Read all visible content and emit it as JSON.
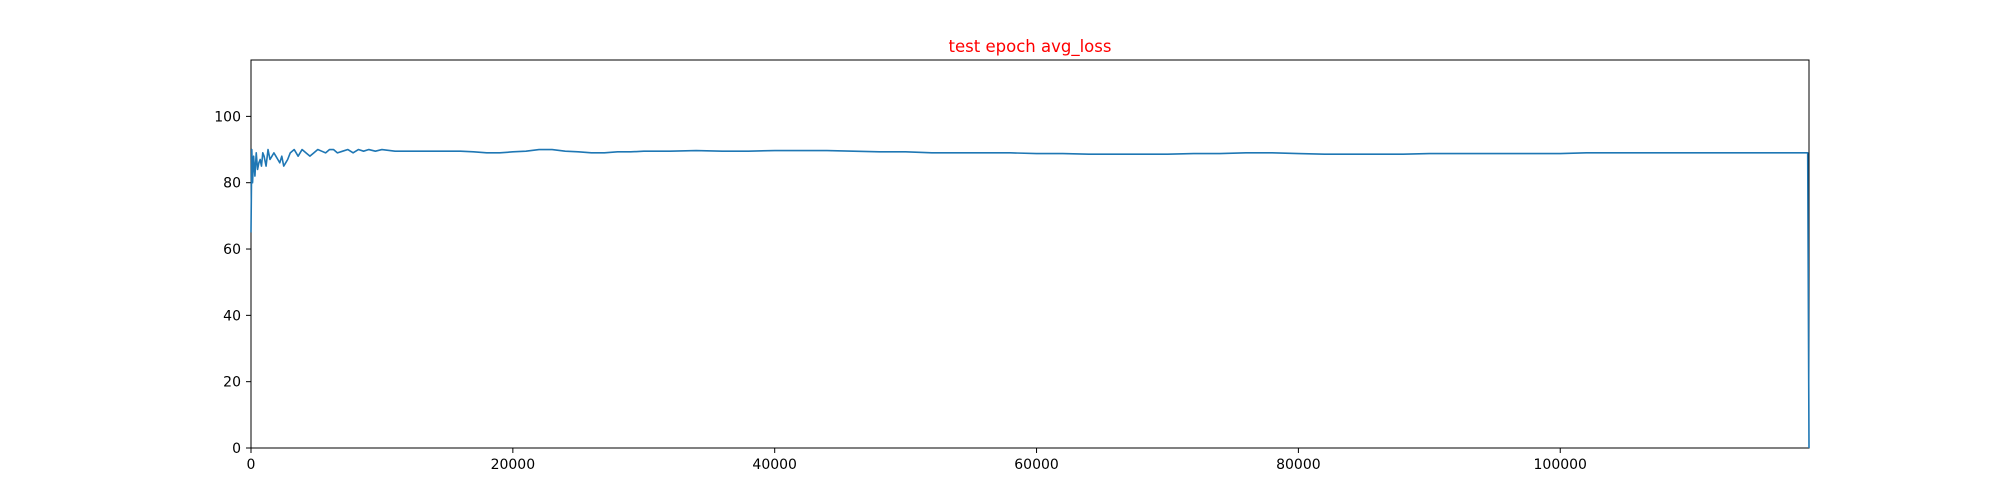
{
  "chart_data": {
    "type": "line",
    "title": "test epoch avg_loss",
    "title_color": "#ff0000",
    "xlabel": "",
    "ylabel": "",
    "xlim": [
      0,
      119000
    ],
    "ylim": [
      0,
      117
    ],
    "x_ticks": [
      0,
      20000,
      40000,
      60000,
      80000,
      100000
    ],
    "x_tick_labels": [
      "0",
      "20000",
      "40000",
      "60000",
      "80000",
      "100000"
    ],
    "y_ticks": [
      0,
      20,
      40,
      60,
      80,
      100
    ],
    "y_tick_labels": [
      "0",
      "20",
      "40",
      "60",
      "80",
      "100"
    ],
    "grid": false,
    "legend": "none",
    "series": [
      {
        "color": "#1f77b4",
        "x": [
          0,
          60,
          120,
          200,
          300,
          400,
          500,
          600,
          700,
          800,
          900,
          1000,
          1150,
          1300,
          1450,
          1600,
          1750,
          1900,
          2050,
          2200,
          2350,
          2500,
          2650,
          2800,
          3000,
          3300,
          3600,
          3900,
          4200,
          4500,
          4800,
          5100,
          5400,
          5700,
          6000,
          6300,
          6600,
          7000,
          7400,
          7800,
          8200,
          8600,
          9000,
          9500,
          10000,
          11000,
          12000,
          13000,
          14000,
          15000,
          16000,
          17000,
          18000,
          19000,
          20000,
          21000,
          22000,
          23000,
          24000,
          25000,
          26000,
          27000,
          28000,
          29000,
          30000,
          32000,
          34000,
          36000,
          38000,
          40000,
          42000,
          44000,
          46000,
          48000,
          50000,
          52000,
          54000,
          56000,
          58000,
          60000,
          62000,
          64000,
          66000,
          68000,
          70000,
          72000,
          74000,
          76000,
          78000,
          80000,
          82000,
          84000,
          86000,
          88000,
          90000,
          92000,
          94000,
          96000,
          98000,
          100000,
          102000,
          104000,
          106000,
          108000,
          110000,
          112000,
          114000,
          116000,
          118000,
          118900,
          119000
        ],
        "y": [
          65,
          90,
          80,
          88,
          82,
          89,
          84,
          86,
          87,
          85,
          89,
          88,
          85,
          90,
          87,
          88,
          89,
          88,
          87,
          86,
          88,
          85,
          86,
          87,
          89,
          90,
          88,
          90,
          89,
          88,
          89,
          90,
          89.5,
          89,
          90,
          90,
          89,
          89.5,
          90,
          89,
          90,
          89.5,
          90,
          89.5,
          90,
          89.5,
          89.5,
          89.5,
          89.5,
          89.5,
          89.5,
          89.3,
          89,
          89,
          89.3,
          89.5,
          90,
          90,
          89.5,
          89.3,
          89,
          89,
          89.3,
          89.3,
          89.5,
          89.5,
          89.7,
          89.5,
          89.5,
          89.7,
          89.7,
          89.7,
          89.5,
          89.3,
          89.3,
          89,
          89,
          89,
          89,
          88.8,
          88.8,
          88.6,
          88.6,
          88.6,
          88.6,
          88.8,
          88.8,
          89,
          89,
          88.8,
          88.6,
          88.6,
          88.6,
          88.6,
          88.8,
          88.8,
          88.8,
          88.8,
          88.8,
          88.8,
          89,
          89,
          89,
          89,
          89,
          89,
          89,
          89,
          89,
          89,
          0
        ]
      }
    ]
  }
}
